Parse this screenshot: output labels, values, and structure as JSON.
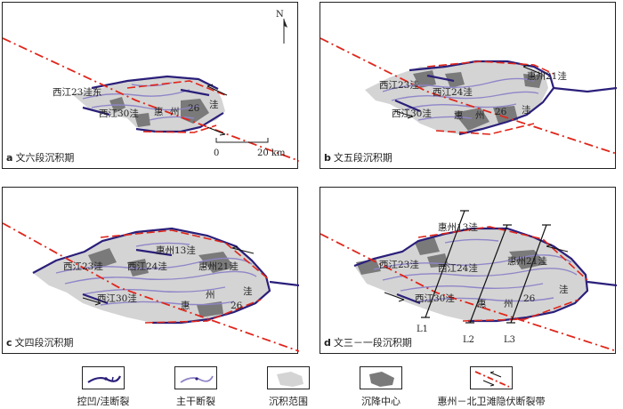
{
  "panels": [
    {
      "letter": "a",
      "caption": "文六段沉积期",
      "sag_labels": [
        "西江23洼东",
        "西江30洼",
        "惠",
        "州",
        "26",
        "洼"
      ],
      "north": "N",
      "scale_min": "0",
      "scale_max": "20 km"
    },
    {
      "letter": "b",
      "caption": "文五段沉积期",
      "sag_labels": [
        "西江23洼",
        "西江24洼",
        "惠州21洼",
        "西江30洼",
        "惠",
        "州",
        "26",
        "洼"
      ]
    },
    {
      "letter": "c",
      "caption": "文四段沉积期",
      "sag_labels": [
        "惠州13洼",
        "西江23洼",
        "西江24洼",
        "惠州21洼",
        "西江30洼",
        "惠",
        "州",
        "26",
        "洼"
      ]
    },
    {
      "letter": "d",
      "caption": "文三－一段沉积期",
      "sag_labels": [
        "惠州13洼",
        "西江23洼",
        "西江24洼",
        "惠州21洼",
        "西江30洼",
        "惠",
        "州",
        "26",
        "洼"
      ],
      "profiles": [
        "L1",
        "L2",
        "L3"
      ]
    }
  ],
  "legend": [
    {
      "icon": "sag-fault-icon",
      "label": "控凹/洼断裂"
    },
    {
      "icon": "main-fault-icon",
      "label": "主干断裂"
    },
    {
      "icon": "deposition-area-icon",
      "label": "沉积范围"
    },
    {
      "icon": "subsidence-center-icon",
      "label": "沉降中心"
    },
    {
      "icon": "strike-slip-zone-icon",
      "label": "惠州－北卫滩隐伏断裂带"
    }
  ],
  "colors": {
    "deposit": "#d4d4d4",
    "subsidence": "#7a7a7a",
    "sag_fault": "#2a1f7a",
    "main_fault": "#8f86c8",
    "strike_slip": "#e0261b"
  }
}
